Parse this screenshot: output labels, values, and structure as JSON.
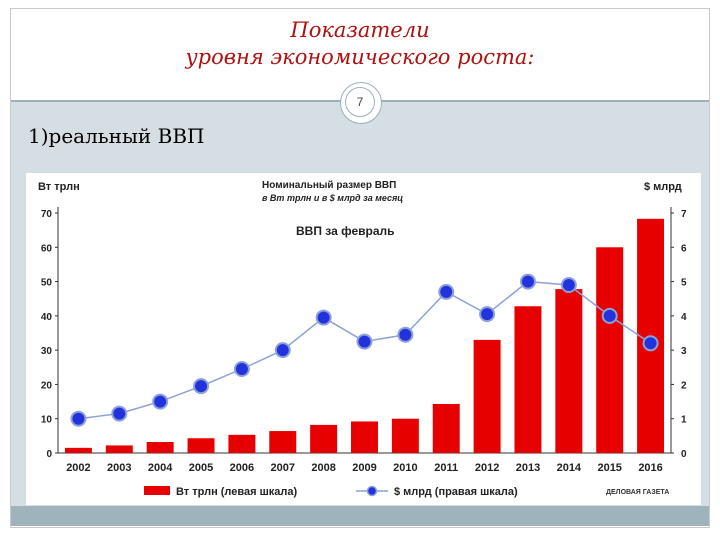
{
  "slide": {
    "title_line1": "Показатели",
    "title_line2": "уровня экономического роста:",
    "slide_number": "7",
    "subtitle": "1)реальный ВВП"
  },
  "chart_data": {
    "type": "bar",
    "title": "Номинальный размер ВВП",
    "subtitle": "в Вт трлн и в $ млрд за месяц",
    "annotation": "ВВП за февраль",
    "left_axis_label": "Вт трлн",
    "right_axis_label": "$ млрд",
    "categories": [
      "2002",
      "2003",
      "2004",
      "2005",
      "2006",
      "2007",
      "2008",
      "2009",
      "2010",
      "2011",
      "2012",
      "2013",
      "2014",
      "2015",
      "2016"
    ],
    "ylim": [
      0,
      70
    ],
    "yticks": [
      "0",
      "10",
      "20",
      "30",
      "40",
      "50",
      "60",
      "70"
    ],
    "y2lim": [
      0,
      7
    ],
    "y2ticks": [
      "0",
      "1",
      "2",
      "3",
      "4",
      "5",
      "6",
      "7"
    ],
    "grid": false,
    "legend_position": "bottom",
    "series": [
      {
        "name": "Вт трлн (левая шкала)",
        "kind": "bar",
        "axis": "left",
        "color": "#e60000",
        "values": [
          1.5,
          2.2,
          3.2,
          4.3,
          5.3,
          6.4,
          8.2,
          9.2,
          10.0,
          14.3,
          33.0,
          42.8,
          47.8,
          60.0,
          68.3
        ]
      },
      {
        "name": "$ млрд (правая шкала)",
        "kind": "line",
        "axis": "right",
        "color": "#8ea1d6",
        "marker_color": "#2233dd",
        "values": [
          1.0,
          1.15,
          1.5,
          1.95,
          2.45,
          3.0,
          3.95,
          3.25,
          3.45,
          4.7,
          4.05,
          5.0,
          4.9,
          4.0,
          3.2
        ]
      }
    ],
    "watermark": "ДЕЛОВАЯ ГАЗЕТА"
  }
}
